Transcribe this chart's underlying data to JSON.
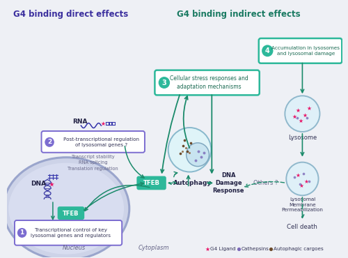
{
  "bg_color": "#eef0f5",
  "title_direct": "G4 binding direct effects",
  "title_indirect": "G4 binding indirect effects",
  "title_direct_color": "#3b2f9e",
  "title_indirect_color": "#1a7a62",
  "teal": "#2db89a",
  "dark_teal": "#1a8a6a",
  "purple": "#7b6cd0",
  "purple_light": "#dddaf5",
  "nucleus_fill": "#cdd3e8",
  "nucleus_edge": "#9aa5cc",
  "nucleus_inner": "#d8ddf0",
  "g4_color": "#e8186a",
  "cath_color": "#7b68b8",
  "auto_color": "#6b4a2a",
  "lyso_fill": "#dff0f8",
  "lyso_edge": "#90b8cc",
  "box1_text": "Transcriptional control of key\nlysosomal genes and regulators",
  "box2_text": "Post-transcriptional regulation\nof lysosomal genes ?",
  "box2_sub": "Transcript stability\nRNA splicing\nTranslation regulation",
  "box3_text": "Cellular stress responses and\nadaptation mechanisms",
  "box4_text": "Accumulation in lysosomes\nand lysosomal damage",
  "title_direct_str": "G4 binding direct effects",
  "title_indirect_str": "G4 binding indirect effects",
  "tfeb_label": "TFEB",
  "autophagy_label": "Autophagy",
  "ddr_label": "DNA\nDamage\nResponse",
  "others_label": "Others ?",
  "lysosome_label": "Lysosome",
  "lmp_label": "Lysosomal\nMembrane\nPermeabilization",
  "celldeath_label": "Cell death",
  "rna_label": "RNA",
  "dna_label": "DNA",
  "nucleus_label": "Nucleus",
  "cytoplasm_label": "Cytoplasm",
  "legend_g4": "G4 Ligand",
  "legend_cath": "Cathepsins",
  "legend_auto": "Autophagic cargoes"
}
